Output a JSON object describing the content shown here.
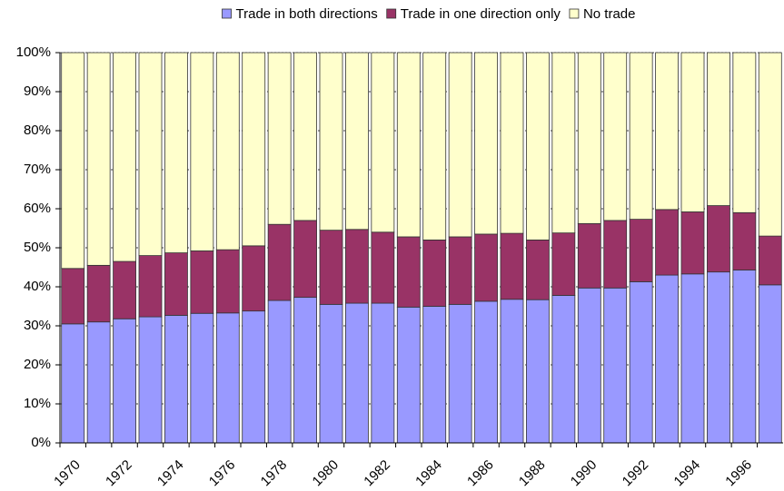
{
  "chart_data": {
    "type": "stacked_bar",
    "categories": [
      "1970",
      null,
      "1972",
      null,
      "1974",
      null,
      "1976",
      null,
      "1978",
      null,
      "1980",
      null,
      "1982",
      null,
      "1984",
      null,
      "1986",
      null,
      "1988",
      null,
      "1990",
      null,
      "1992",
      null,
      "1994",
      null,
      "1996",
      null
    ],
    "series": [
      {
        "name": "Trade in both directions",
        "color": "#9999ff",
        "values": [
          30.5,
          31,
          31.8,
          32.3,
          32.7,
          33.2,
          33.3,
          33.8,
          36.5,
          37.3,
          35.5,
          35.8,
          35.8,
          34.8,
          35,
          35.5,
          36.3,
          36.8,
          36.7,
          37.8,
          39.7,
          39.7,
          41.3,
          43,
          43.3,
          43.8,
          44.3,
          40.5
        ]
      },
      {
        "name": "Trade in one direction only",
        "color": "#993366",
        "values": [
          14.2,
          14.5,
          14.7,
          15.7,
          16,
          16,
          16.2,
          16.7,
          19.5,
          19.7,
          19,
          18.9,
          18.2,
          18,
          17,
          17.3,
          17.2,
          16.9,
          15.3,
          16,
          16.5,
          17.3,
          16,
          16.8,
          15.9,
          17,
          14.7,
          12.5
        ]
      },
      {
        "name": "No trade",
        "color": "#ffffcc",
        "values": [
          55.3,
          54.5,
          53.5,
          52,
          51.3,
          50.8,
          50.5,
          49.5,
          44,
          43,
          45.5,
          45.3,
          46,
          47.2,
          48,
          47.2,
          46.5,
          46.3,
          48,
          46.2,
          43.8,
          43,
          42.7,
          40.2,
          40.8,
          39.2,
          41,
          47
        ]
      }
    ],
    "ylim": [
      0,
      100
    ],
    "yticks": [
      {
        "value": 0,
        "label": "0%"
      },
      {
        "value": 10,
        "label": "10%"
      },
      {
        "value": 20,
        "label": "20%"
      },
      {
        "value": 30,
        "label": "30%"
      },
      {
        "value": 40,
        "label": "40%"
      },
      {
        "value": 50,
        "label": "50%"
      },
      {
        "value": 60,
        "label": "60%"
      },
      {
        "value": 70,
        "label": "70%"
      },
      {
        "value": 80,
        "label": "80%"
      },
      {
        "value": 90,
        "label": "90%"
      },
      {
        "value": 100,
        "label": "100%"
      }
    ],
    "grid": true,
    "legend": "top"
  }
}
